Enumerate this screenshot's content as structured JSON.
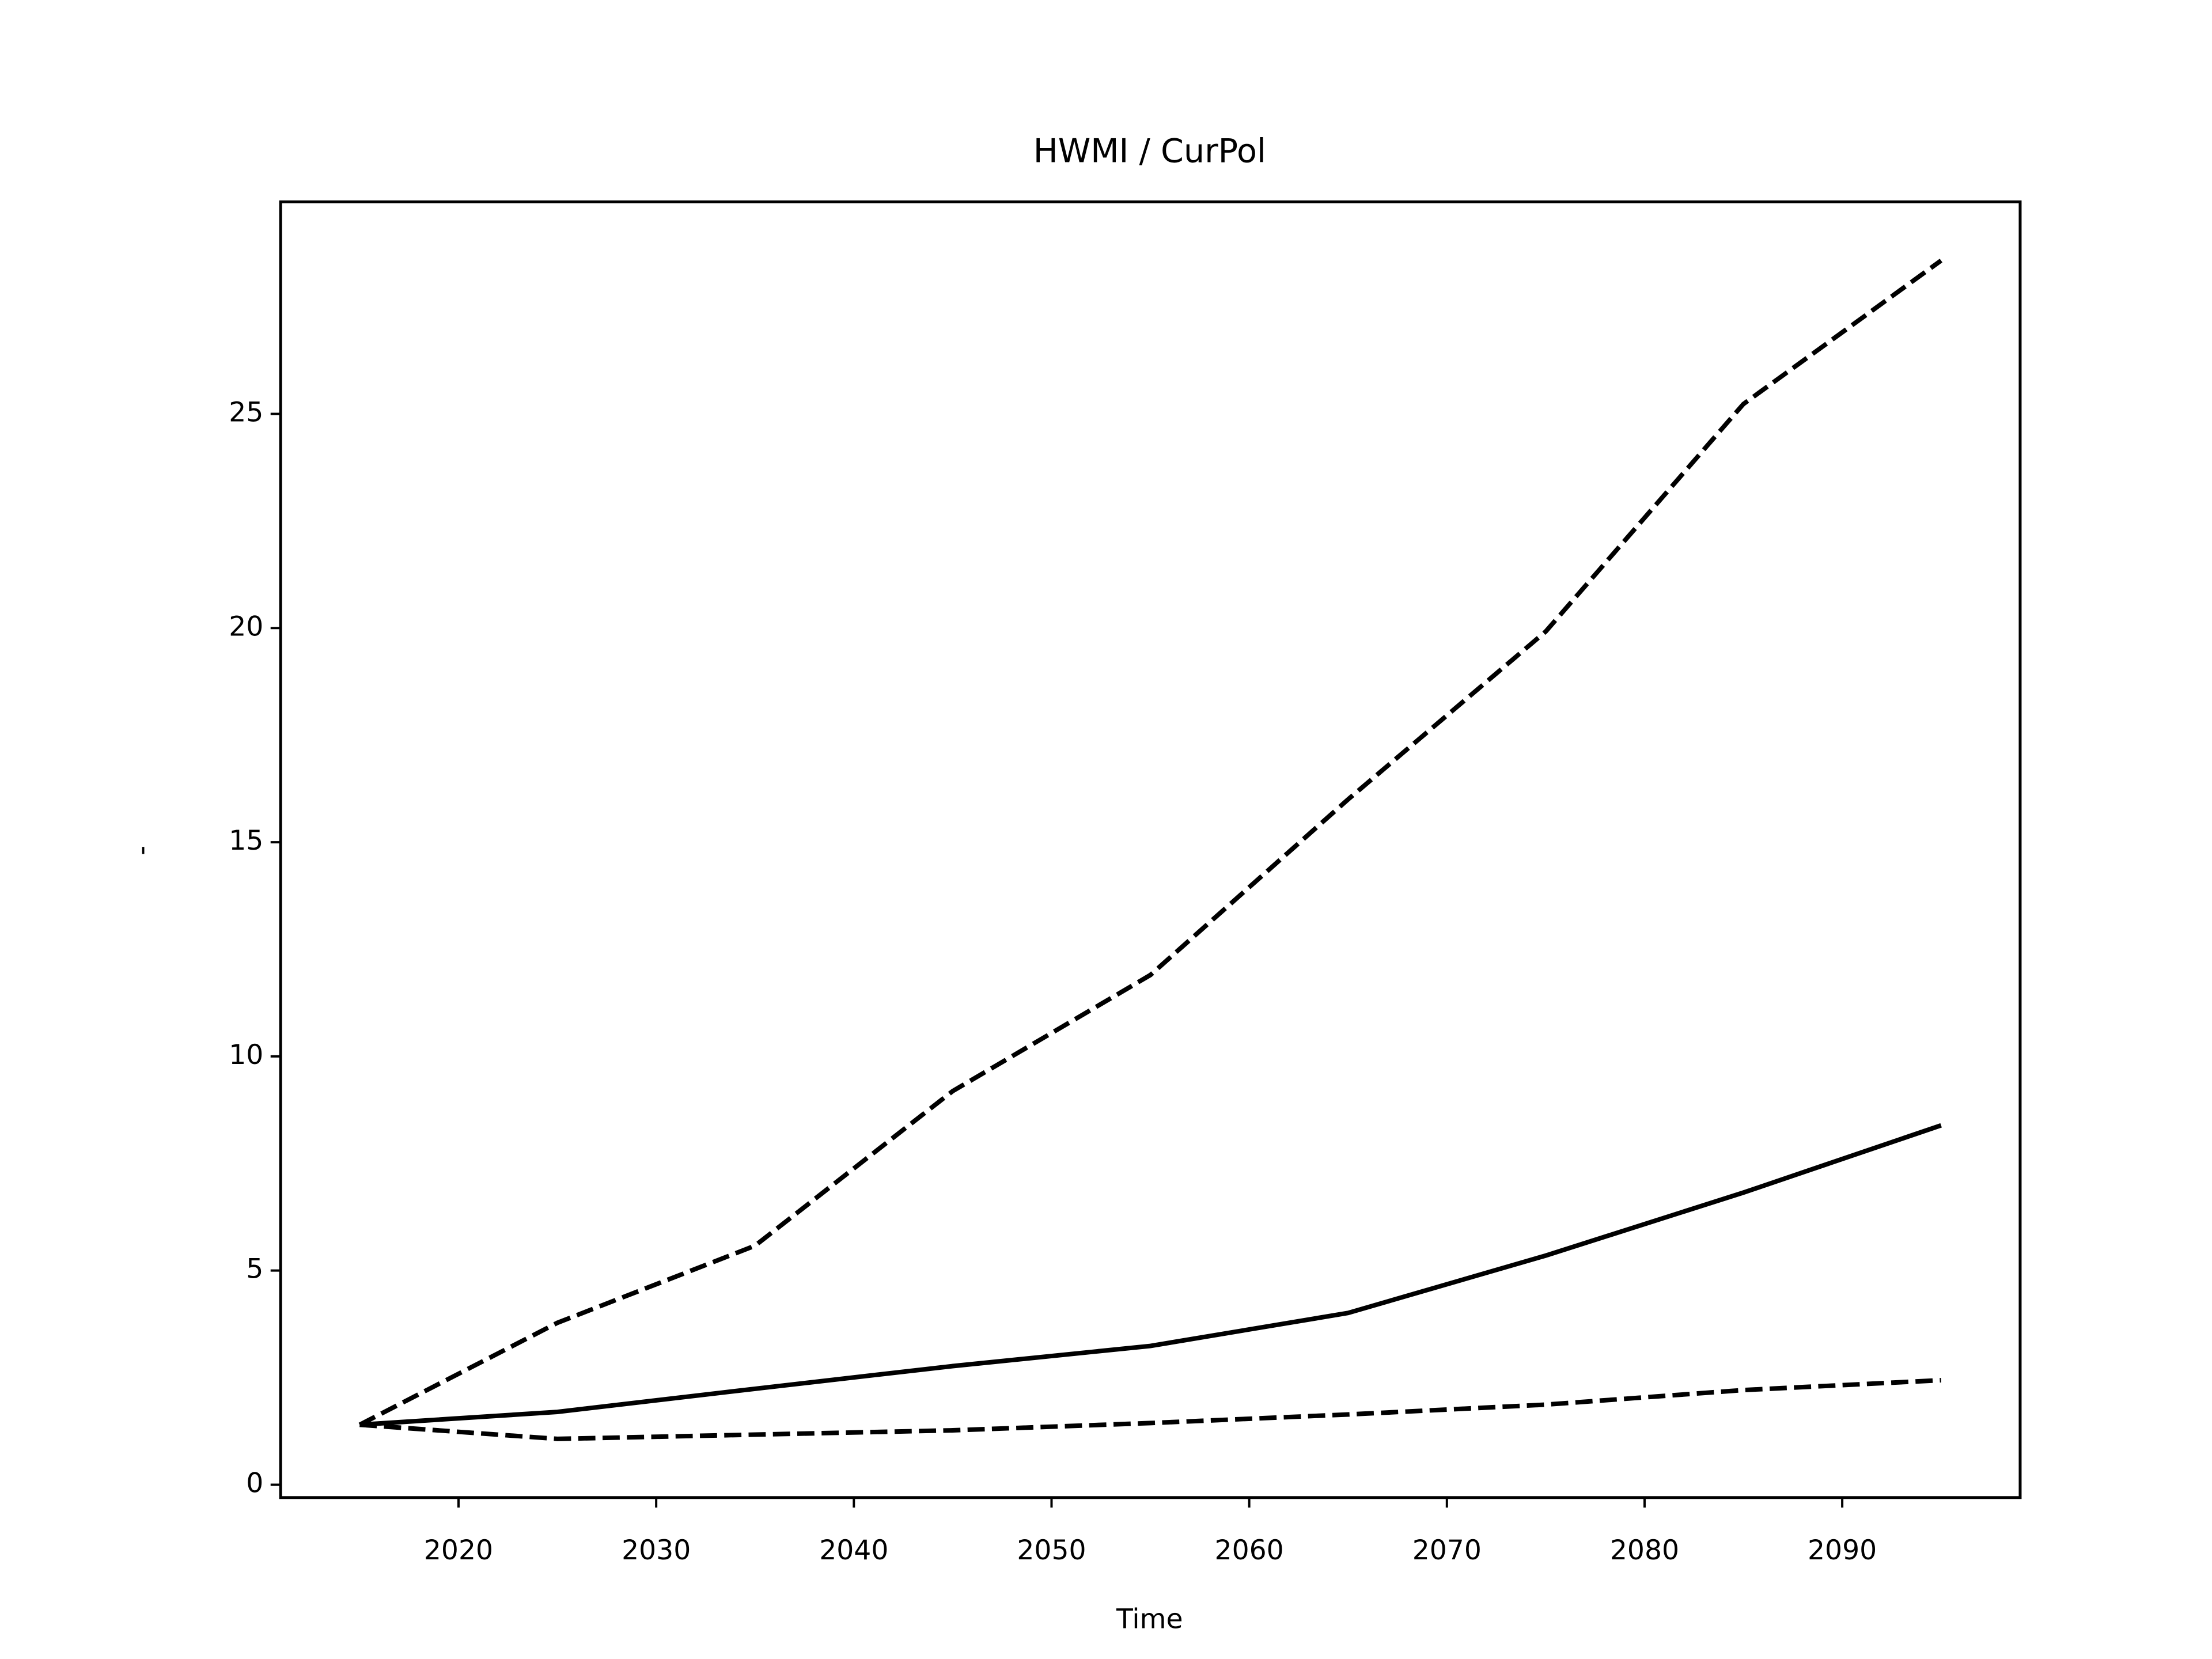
{
  "chart_data": {
    "type": "line",
    "title": "HWMI / CurPol",
    "x_label": "Time",
    "y_label": "-",
    "x": [
      2015,
      2025,
      2035,
      2045,
      2055,
      2065,
      2075,
      2085,
      2095
    ],
    "series": [
      {
        "color": "#000000",
        "linestyle": "dashed",
        "values": [
          1.4,
          3.78,
          5.58,
          9.19,
          11.9,
          16.0,
          19.92,
          25.23,
          28.58
        ]
      },
      {
        "color": "#000000",
        "linestyle": "solid",
        "values": [
          1.4,
          1.7,
          2.24,
          2.77,
          3.24,
          4.01,
          5.35,
          6.82,
          8.39
        ]
      },
      {
        "color": "#000000",
        "linestyle": "dashed",
        "values": [
          1.4,
          1.07,
          1.17,
          1.27,
          1.44,
          1.64,
          1.87,
          2.21,
          2.44
        ]
      }
    ],
    "xlim": [
      2011,
      2099
    ],
    "xticks": [
      2020,
      2030,
      2040,
      2050,
      2060,
      2070,
      2080,
      2090
    ],
    "ylim": [
      -0.3,
      29.95
    ],
    "yticks": [
      0,
      5,
      10,
      15,
      20,
      25
    ],
    "grid": false
  }
}
